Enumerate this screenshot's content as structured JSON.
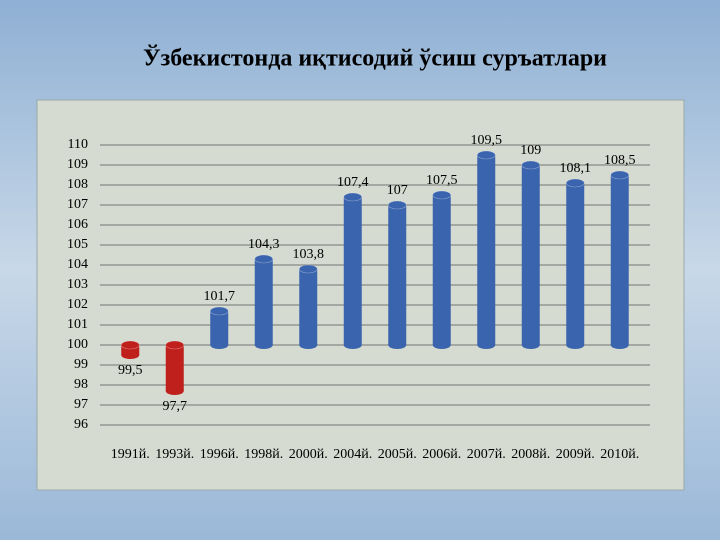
{
  "chart_data": {
    "type": "bar",
    "title": "Ўзбекистонда иқтисодий ўсиш суръатлари",
    "categories": [
      "1991й.",
      "1993й.",
      "1996й.",
      "1998й.",
      "2000й.",
      "2004й.",
      "2005й.",
      "2006й.",
      "2007й.",
      "2008й.",
      "2009й.",
      "2010й."
    ],
    "values": [
      99.5,
      97.7,
      101.7,
      104.3,
      103.8,
      107.4,
      107,
      107.5,
      109.5,
      109,
      108.1,
      108.5
    ],
    "value_labels": [
      "99,5",
      "97,7",
      "101,7",
      "104,3",
      "103,8",
      "107,4",
      "107",
      "107,5",
      "109,5",
      "109",
      "108,1",
      "108,5"
    ],
    "colors": [
      "#c0201c",
      "#c0201c",
      "#3a64ad",
      "#3a64ad",
      "#3a64ad",
      "#3a64ad",
      "#3a64ad",
      "#3a64ad",
      "#3a64ad",
      "#3a64ad",
      "#3a64ad",
      "#3a64ad"
    ],
    "baseline": 100,
    "ylim": [
      96,
      110
    ],
    "yticks": [
      96,
      97,
      98,
      99,
      100,
      101,
      102,
      103,
      104,
      105,
      106,
      107,
      108,
      109,
      110
    ],
    "grid": true
  }
}
